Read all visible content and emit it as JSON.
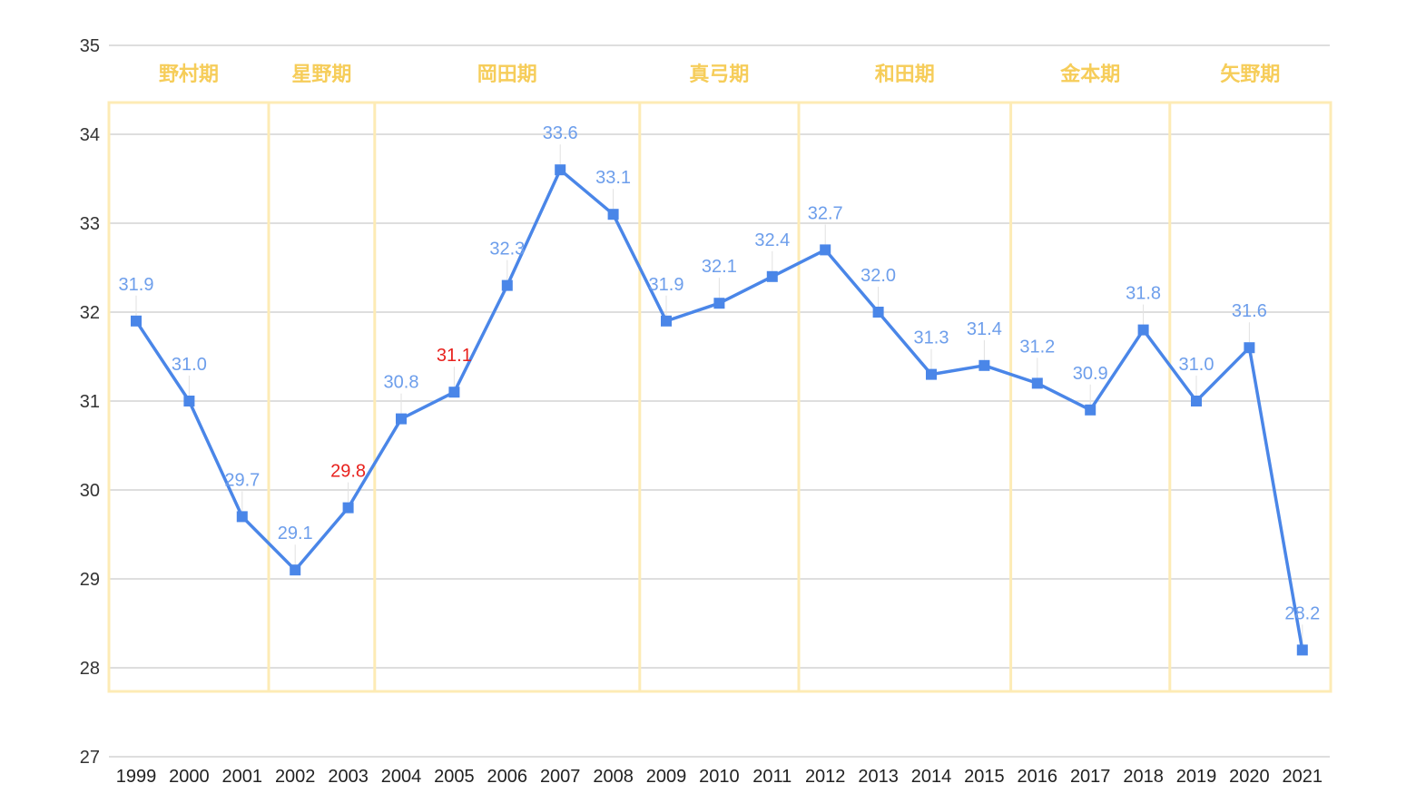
{
  "chart_data": {
    "type": "line",
    "title": "",
    "xlabel": "",
    "ylabel": "",
    "ylim": [
      27,
      35
    ],
    "yticks": [
      27,
      28,
      29,
      30,
      31,
      32,
      33,
      34,
      35
    ],
    "grid": true,
    "x": [
      "1999",
      "2000",
      "2001",
      "2002",
      "2003",
      "2004",
      "2005",
      "2006",
      "2007",
      "2008",
      "2009",
      "2010",
      "2011",
      "2012",
      "2013",
      "2014",
      "2015",
      "2016",
      "2017",
      "2018",
      "2019",
      "2020",
      "2021"
    ],
    "series": [
      {
        "values": [
          31.9,
          31.0,
          29.7,
          29.1,
          29.8,
          30.8,
          31.1,
          32.3,
          33.6,
          33.1,
          31.9,
          32.1,
          32.4,
          32.7,
          32.0,
          31.3,
          31.4,
          31.2,
          30.9,
          31.8,
          31.0,
          31.6,
          28.2
        ],
        "data_labels": [
          "31.9",
          "31.0",
          "29.7",
          "29.1",
          "29.8",
          "30.8",
          "31.1",
          "32.3",
          "33.6",
          "33.1",
          "31.9",
          "32.1",
          "32.4",
          "32.7",
          "32.0",
          "31.3",
          "31.4",
          "31.2",
          "30.9",
          "31.8",
          "31.0",
          "31.6",
          "28.2"
        ],
        "highlighted_labels": [
          "2003",
          "2005"
        ],
        "color": "#4a86e8",
        "marker": "square"
      }
    ],
    "annotations": [
      {
        "label": "野村期",
        "from": "1999",
        "to": "2001"
      },
      {
        "label": "星野期",
        "from": "2002",
        "to": "2003"
      },
      {
        "label": "岡田期",
        "from": "2004",
        "to": "2008"
      },
      {
        "label": "真弓期",
        "from": "2009",
        "to": "2011"
      },
      {
        "label": "和田期",
        "from": "2012",
        "to": "2015"
      },
      {
        "label": "金本期",
        "from": "2016",
        "to": "2018"
      },
      {
        "label": "矢野期",
        "from": "2019",
        "to": "2021"
      }
    ],
    "colors": {
      "line": "#4a86e8",
      "label": "#6d9eeb",
      "highlight_label": "#e8211d",
      "era_text": "#f6cd5a",
      "era_border": "#fdebb5",
      "grid": "#d4d4d4"
    }
  }
}
